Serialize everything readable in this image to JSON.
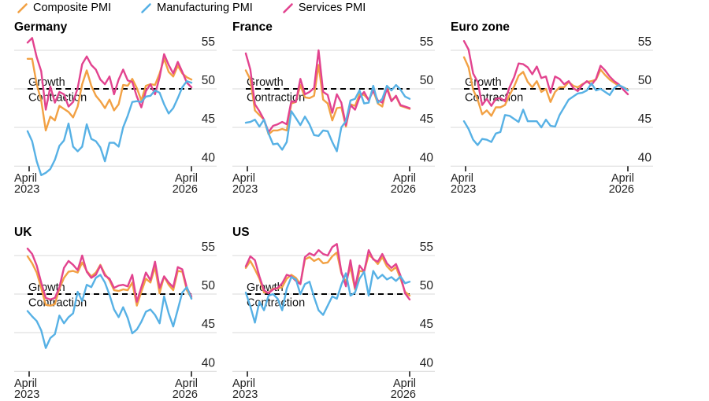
{
  "legend": [
    {
      "label": "Composite PMI",
      "color": "#F2A144"
    },
    {
      "label": "Manufacturing PMI",
      "color": "#57B1E5"
    },
    {
      "label": "Services PMI",
      "color": "#E2438F"
    }
  ],
  "colors": {
    "composite": "#F2A144",
    "manufacturing": "#57B1E5",
    "services": "#E2438F",
    "grid": "#D9D9D9",
    "threshold_line": "#000000",
    "text": "#222222",
    "background": "#FFFFFF"
  },
  "axis": {
    "y_ticks": [
      55,
      50,
      45,
      40
    ],
    "x_start_label": [
      "April",
      "2023"
    ],
    "x_end_label": [
      "April",
      "2026"
    ],
    "months": 37
  },
  "threshold": {
    "value": 50,
    "above_label": "Growth",
    "below_label": "Contraction"
  },
  "chart_data": [
    {
      "type": "line",
      "title": "Germany",
      "row": 0,
      "col": 0,
      "x_range": [
        "April 2023",
        "April 2026"
      ],
      "ylim": [
        38.5,
        57
      ],
      "grid": true,
      "series": [
        {
          "name": "Composite PMI",
          "color": "#F2A144",
          "values": [
            53.9,
            53.9,
            50.6,
            48.5,
            44.6,
            46.4,
            45.9,
            47.8,
            47.4,
            47.0,
            46.3,
            47.7,
            50.6,
            52.4,
            50.4,
            49.1,
            48.4,
            47.5,
            48.6,
            47.2,
            48.0,
            50.5,
            50.4,
            51.3,
            50.1,
            48.5,
            50.4,
            50.6,
            50.5,
            52.0,
            53.9,
            52.2,
            51.6,
            53.0,
            52.0,
            51.5,
            51.2
          ]
        },
        {
          "name": "Manufacturing PMI",
          "color": "#57B1E5",
          "values": [
            44.5,
            43.2,
            40.6,
            38.8,
            39.1,
            39.6,
            40.8,
            42.6,
            43.3,
            45.5,
            42.5,
            41.9,
            42.5,
            45.4,
            43.5,
            43.2,
            42.4,
            40.6,
            43.0,
            43.0,
            42.5,
            45.0,
            46.5,
            48.3,
            48.4,
            48.3,
            49.0,
            49.1,
            49.8,
            49.5,
            48.0,
            46.8,
            47.5,
            48.8,
            50.2,
            51.0,
            50.8
          ]
        },
        {
          "name": "Services PMI",
          "color": "#E2438F",
          "values": [
            56.0,
            56.6,
            54.1,
            52.3,
            47.3,
            50.3,
            48.2,
            49.6,
            49.3,
            47.7,
            48.3,
            50.1,
            53.2,
            54.2,
            53.1,
            52.5,
            51.2,
            50.6,
            51.6,
            49.3,
            51.2,
            52.5,
            51.1,
            50.9,
            49.0,
            47.6,
            49.7,
            50.6,
            49.3,
            51.5,
            54.5,
            53.1,
            52.0,
            53.5,
            52.2,
            50.8,
            50.2
          ]
        }
      ]
    },
    {
      "type": "line",
      "title": "France",
      "row": 0,
      "col": 1,
      "x_range": [
        "April 2023",
        "April 2026"
      ],
      "ylim": [
        38.5,
        57
      ],
      "grid": true,
      "series": [
        {
          "name": "Composite PMI",
          "color": "#F2A144",
          "values": [
            52.4,
            51.2,
            47.2,
            46.6,
            46.0,
            44.1,
            44.6,
            44.6,
            44.8,
            44.6,
            48.1,
            48.3,
            50.5,
            48.9,
            48.8,
            49.1,
            53.1,
            48.6,
            48.1,
            45.9,
            47.5,
            47.6,
            45.1,
            48.0,
            47.8,
            49.3,
            49.2,
            48.6,
            49.8,
            48.1,
            47.7,
            50.3,
            48.5,
            49.0,
            47.8,
            47.6,
            47.4
          ]
        },
        {
          "name": "Manufacturing PMI",
          "color": "#57B1E5",
          "values": [
            45.6,
            45.7,
            46.0,
            45.1,
            46.0,
            44.2,
            42.8,
            42.9,
            42.1,
            43.1,
            47.1,
            46.2,
            45.3,
            46.4,
            45.4,
            44.0,
            43.9,
            44.6,
            44.5,
            43.1,
            41.9,
            45.0,
            45.8,
            48.5,
            48.7,
            49.8,
            48.1,
            48.2,
            50.4,
            48.2,
            48.7,
            50.4,
            49.8,
            50.5,
            49.9,
            49.0,
            48.7
          ]
        },
        {
          "name": "Services PMI",
          "color": "#E2438F",
          "values": [
            54.6,
            52.5,
            48.0,
            47.1,
            46.0,
            44.4,
            45.2,
            45.4,
            45.7,
            45.4,
            48.4,
            48.3,
            51.3,
            49.3,
            49.6,
            50.1,
            55.0,
            49.6,
            49.2,
            46.9,
            49.3,
            48.2,
            45.3,
            47.9,
            47.3,
            48.9,
            49.6,
            48.5,
            49.8,
            48.5,
            48.2,
            50.0,
            48.4,
            49.1,
            47.9,
            47.7,
            47.5
          ]
        }
      ]
    },
    {
      "type": "line",
      "title": "Euro zone",
      "row": 0,
      "col": 2,
      "x_range": [
        "April 2023",
        "April 2026"
      ],
      "ylim": [
        38.5,
        57
      ],
      "grid": true,
      "series": [
        {
          "name": "Composite PMI",
          "color": "#F2A144",
          "values": [
            54.1,
            52.8,
            49.9,
            48.6,
            46.7,
            47.2,
            46.5,
            47.6,
            47.6,
            47.9,
            49.2,
            50.3,
            51.7,
            52.2,
            50.9,
            50.2,
            51.0,
            49.6,
            50.0,
            48.3,
            49.6,
            50.2,
            50.2,
            50.9,
            50.4,
            50.2,
            50.6,
            50.9,
            51.0,
            51.2,
            52.5,
            51.8,
            51.2,
            50.8,
            50.4,
            50.2,
            49.9
          ]
        },
        {
          "name": "Manufacturing PMI",
          "color": "#57B1E5",
          "values": [
            45.8,
            44.8,
            43.4,
            42.7,
            43.5,
            43.4,
            43.1,
            44.2,
            44.4,
            46.6,
            46.5,
            46.1,
            45.7,
            47.3,
            45.8,
            45.8,
            45.8,
            45.0,
            46.0,
            45.2,
            45.1,
            46.6,
            47.6,
            48.6,
            49.0,
            49.4,
            49.5,
            49.8,
            50.7,
            49.8,
            50.0,
            49.6,
            49.2,
            50.1,
            50.5,
            50.2,
            49.8
          ]
        },
        {
          "name": "Services PMI",
          "color": "#E2438F",
          "values": [
            56.2,
            55.1,
            52.0,
            50.9,
            47.9,
            48.7,
            47.8,
            48.7,
            48.8,
            48.4,
            50.2,
            51.5,
            53.3,
            53.2,
            52.8,
            51.9,
            52.9,
            51.4,
            51.6,
            49.5,
            51.6,
            51.3,
            50.6,
            51.0,
            50.1,
            49.7,
            50.5,
            51.0,
            50.5,
            51.3,
            53.0,
            52.4,
            51.6,
            51.0,
            50.6,
            49.9,
            49.3
          ]
        }
      ]
    },
    {
      "type": "line",
      "title": "UK",
      "row": 1,
      "col": 0,
      "x_range": [
        "April 2023",
        "April 2026"
      ],
      "ylim": [
        38.5,
        57
      ],
      "grid": true,
      "series": [
        {
          "name": "Composite PMI",
          "color": "#F2A144",
          "values": [
            54.9,
            54.0,
            52.8,
            50.8,
            48.6,
            48.5,
            48.7,
            50.7,
            52.1,
            52.9,
            53.0,
            52.8,
            54.1,
            53.0,
            52.3,
            52.8,
            53.8,
            52.6,
            51.8,
            50.5,
            50.4,
            50.6,
            50.5,
            51.5,
            48.5,
            50.3,
            52.0,
            51.5,
            53.5,
            50.1,
            52.3,
            51.2,
            50.5,
            53.0,
            52.9,
            50.5,
            49.5
          ]
        },
        {
          "name": "Manufacturing PMI",
          "color": "#57B1E5",
          "values": [
            47.8,
            47.1,
            46.5,
            45.3,
            43.0,
            44.3,
            44.8,
            47.2,
            46.2,
            47.0,
            47.5,
            50.3,
            49.1,
            51.2,
            50.9,
            52.1,
            52.5,
            51.5,
            49.9,
            48.0,
            47.0,
            48.3,
            46.9,
            44.9,
            45.4,
            46.4,
            47.7,
            48.0,
            47.3,
            46.2,
            49.7,
            47.5,
            45.8,
            48.0,
            50.2,
            50.9,
            49.4
          ]
        },
        {
          "name": "Services PMI",
          "color": "#E2438F",
          "values": [
            55.9,
            55.2,
            53.7,
            51.5,
            49.5,
            49.3,
            49.5,
            50.9,
            53.4,
            54.3,
            53.8,
            53.1,
            55.0,
            52.9,
            52.1,
            52.5,
            53.7,
            52.4,
            52.0,
            50.8,
            51.1,
            51.2,
            51.0,
            52.5,
            49.0,
            50.9,
            52.8,
            51.8,
            54.2,
            50.8,
            52.3,
            51.5,
            50.9,
            53.5,
            53.2,
            50.8,
            49.7
          ]
        }
      ]
    },
    {
      "type": "line",
      "title": "US",
      "row": 1,
      "col": 1,
      "x_range": [
        "April 2023",
        "April 2026"
      ],
      "ylim": [
        38.5,
        57
      ],
      "grid": true,
      "series": [
        {
          "name": "Composite PMI",
          "color": "#F2A144",
          "values": [
            53.4,
            54.3,
            53.2,
            52.0,
            50.2,
            50.2,
            50.7,
            50.7,
            50.9,
            52.0,
            52.5,
            52.1,
            51.3,
            54.5,
            54.8,
            54.3,
            54.6,
            54.0,
            54.1,
            54.9,
            55.4,
            52.7,
            51.6,
            53.5,
            50.6,
            53.0,
            52.9,
            55.1,
            54.6,
            53.9,
            54.8,
            53.6,
            53.0,
            53.5,
            52.0,
            50.3,
            49.8
          ]
        },
        {
          "name": "Manufacturing PMI",
          "color": "#57B1E5",
          "values": [
            50.2,
            48.4,
            46.3,
            49.0,
            47.9,
            49.8,
            50.0,
            49.4,
            47.9,
            50.7,
            52.2,
            51.9,
            50.0,
            51.3,
            51.6,
            49.6,
            47.9,
            47.3,
            48.5,
            49.7,
            49.4,
            51.2,
            52.7,
            49.8,
            50.2,
            52.0,
            52.9,
            49.8,
            53.0,
            52.0,
            52.5,
            51.9,
            52.2,
            51.7,
            52.3,
            51.4,
            51.6
          ]
        },
        {
          "name": "Services PMI",
          "color": "#E2438F",
          "values": [
            53.6,
            54.9,
            54.4,
            52.3,
            50.5,
            50.1,
            50.6,
            50.8,
            51.4,
            52.5,
            52.3,
            51.7,
            51.3,
            54.8,
            55.3,
            55.0,
            55.7,
            55.2,
            55.0,
            56.1,
            56.5,
            52.9,
            51.0,
            54.4,
            50.8,
            53.7,
            52.9,
            55.7,
            54.5,
            54.2,
            55.2,
            54.0,
            53.4,
            53.9,
            52.4,
            50.1,
            49.3
          ]
        }
      ]
    }
  ]
}
